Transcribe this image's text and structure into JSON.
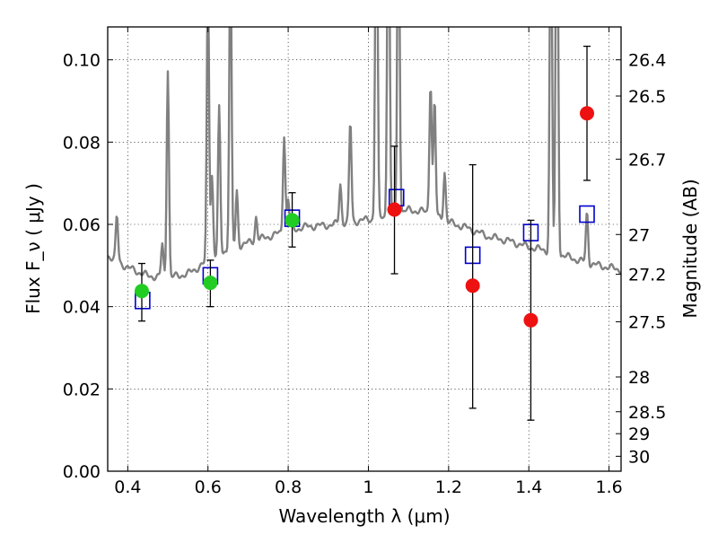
{
  "chart_data": {
    "type": "scatter",
    "title": "",
    "xlabel": "Wavelength  λ (μm)",
    "ylabel": "Flux  F_ν  ( μJy )",
    "y2label": "Magnitude (AB)",
    "xlim": [
      0.35,
      1.63
    ],
    "ylim": [
      0.0,
      0.108
    ],
    "grid": true,
    "xticks": [
      {
        "value": 0.4,
        "label": "0.4"
      },
      {
        "value": 0.6,
        "label": "0.6"
      },
      {
        "value": 0.8,
        "label": "0.8"
      },
      {
        "value": 1.0,
        "label": "1"
      },
      {
        "value": 1.2,
        "label": "1.2"
      },
      {
        "value": 1.4,
        "label": "1.4"
      },
      {
        "value": 1.6,
        "label": "1.6"
      }
    ],
    "yticks": [
      {
        "value": 0.0,
        "label": "0.00"
      },
      {
        "value": 0.02,
        "label": "0.02"
      },
      {
        "value": 0.04,
        "label": "0.04"
      },
      {
        "value": 0.06,
        "label": "0.06"
      },
      {
        "value": 0.08,
        "label": "0.08"
      },
      {
        "value": 0.1,
        "label": "0.10"
      }
    ],
    "y2ticks": [
      {
        "label": "26.4",
        "mag": 26.4
      },
      {
        "label": "26.5",
        "mag": 26.5
      },
      {
        "label": "26.7",
        "mag": 26.7
      },
      {
        "label": "27",
        "mag": 27.0
      },
      {
        "label": "27.2",
        "mag": 27.2
      },
      {
        "label": "27.5",
        "mag": 27.5
      },
      {
        "label": "28",
        "mag": 28.0
      },
      {
        "label": "28.5",
        "mag": 28.5
      },
      {
        "label": "29",
        "mag": 29.0
      },
      {
        "label": "30",
        "mag": 30.0
      }
    ],
    "series": [
      {
        "kind": "line",
        "color": "#808080",
        "continuum": [
          [
            0.35,
            0.0525
          ],
          [
            0.4,
            0.0495
          ],
          [
            0.45,
            0.0475
          ],
          [
            0.5,
            0.047
          ],
          [
            0.55,
            0.048
          ],
          [
            0.6,
            0.051
          ],
          [
            0.65,
            0.054
          ],
          [
            0.7,
            0.0555
          ],
          [
            0.75,
            0.057
          ],
          [
            0.8,
            0.0585
          ],
          [
            0.85,
            0.0595
          ],
          [
            0.9,
            0.0598
          ],
          [
            0.95,
            0.0605
          ],
          [
            1.0,
            0.0612
          ],
          [
            1.05,
            0.062
          ],
          [
            1.1,
            0.0635
          ],
          [
            1.15,
            0.063
          ],
          [
            1.2,
            0.0605
          ],
          [
            1.25,
            0.059
          ],
          [
            1.3,
            0.057
          ],
          [
            1.35,
            0.056
          ],
          [
            1.4,
            0.0545
          ],
          [
            1.45,
            0.0535
          ],
          [
            1.5,
            0.052
          ],
          [
            1.55,
            0.0505
          ],
          [
            1.6,
            0.0495
          ],
          [
            1.63,
            0.049
          ]
        ],
        "lines": [
          [
            0.373,
            0.062
          ],
          [
            0.435,
            0.045
          ],
          [
            0.486,
            0.055
          ],
          [
            0.5,
            0.098
          ],
          [
            0.6,
            0.12
          ],
          [
            0.61,
            0.072
          ],
          [
            0.628,
            0.088
          ],
          [
            0.656,
            0.13
          ],
          [
            0.672,
            0.068
          ],
          [
            0.72,
            0.062
          ],
          [
            0.79,
            0.082
          ],
          [
            0.8,
            0.066
          ],
          [
            0.93,
            0.07
          ],
          [
            0.955,
            0.085
          ],
          [
            1.02,
            0.16
          ],
          [
            1.05,
            0.16
          ],
          [
            1.075,
            0.15
          ],
          [
            1.155,
            0.095
          ],
          [
            1.165,
            0.09
          ],
          [
            1.19,
            0.073
          ],
          [
            1.455,
            0.15
          ],
          [
            1.47,
            0.17
          ],
          [
            1.545,
            0.063
          ]
        ]
      },
      {
        "kind": "model",
        "marker": "square",
        "color": "#0000cc",
        "points": [
          [
            0.437,
            0.0415
          ],
          [
            0.606,
            0.0475
          ],
          [
            0.81,
            0.0615
          ],
          [
            1.07,
            0.0665
          ],
          [
            1.26,
            0.0525
          ],
          [
            1.405,
            0.058
          ],
          [
            1.545,
            0.0625
          ]
        ]
      },
      {
        "kind": "observed",
        "marker": "circle",
        "color": "#22cc22",
        "points": [
          {
            "x": 0.435,
            "y": 0.0438,
            "yerr": [
              0.0365,
              0.0505
            ]
          },
          {
            "x": 0.606,
            "y": 0.0458,
            "yerr": [
              0.04,
              0.0513
            ]
          },
          {
            "x": 0.81,
            "y": 0.061,
            "yerr": [
              0.0545,
              0.0677
            ]
          }
        ]
      },
      {
        "kind": "observed",
        "marker": "circle",
        "color": "#ee1111",
        "points": [
          {
            "x": 1.065,
            "y": 0.0636,
            "yerr": [
              0.048,
              0.079
            ]
          },
          {
            "x": 1.26,
            "y": 0.0451,
            "yerr": [
              0.0153,
              0.0745
            ]
          },
          {
            "x": 1.405,
            "y": 0.0367,
            "yerr": [
              0.0124,
              0.061
            ]
          },
          {
            "x": 1.545,
            "y": 0.087,
            "yerr": [
              0.0707,
              0.1033
            ]
          }
        ]
      }
    ]
  }
}
